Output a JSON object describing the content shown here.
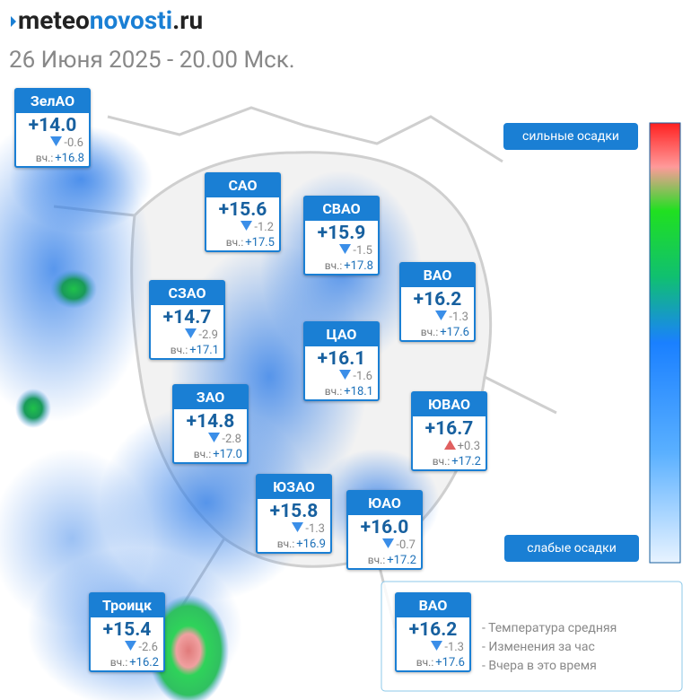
{
  "header": {
    "logo_a": "meteo",
    "logo_b": "novosti",
    "logo_c": ".ru",
    "subtitle": "26 Июня 2025 - 20.00 Мск."
  },
  "districts": [
    {
      "name": "ЗелАО",
      "temp": "+14.0",
      "trend": "down",
      "change": "-0.6",
      "yesterday_label": "вч.:",
      "yesterday": "+16.8"
    },
    {
      "name": "САО",
      "temp": "+15.6",
      "trend": "down",
      "change": "-1.2",
      "yesterday_label": "вч.:",
      "yesterday": "+17.5"
    },
    {
      "name": "СВАО",
      "temp": "+15.9",
      "trend": "down",
      "change": "-1.5",
      "yesterday_label": "вч.:",
      "yesterday": "+17.8"
    },
    {
      "name": "ВАО",
      "temp": "+16.2",
      "trend": "down",
      "change": "-1.3",
      "yesterday_label": "вч.:",
      "yesterday": "+17.6"
    },
    {
      "name": "СЗАО",
      "temp": "+14.7",
      "trend": "down",
      "change": "-2.9",
      "yesterday_label": "вч.:",
      "yesterday": "+17.1"
    },
    {
      "name": "ЦАО",
      "temp": "+16.1",
      "trend": "down",
      "change": "-1.6",
      "yesterday_label": "вч.:",
      "yesterday": "+18.1"
    },
    {
      "name": "ЗАО",
      "temp": "+14.8",
      "trend": "down",
      "change": "-2.8",
      "yesterday_label": "вч.:",
      "yesterday": "+17.0"
    },
    {
      "name": "ЮВАО",
      "temp": "+16.7",
      "trend": "up",
      "change": "+0.3",
      "yesterday_label": "вч.:",
      "yesterday": "+17.2"
    },
    {
      "name": "ЮЗАО",
      "temp": "+15.8",
      "trend": "down",
      "change": "-1.3",
      "yesterday_label": "вч.:",
      "yesterday": "+16.9"
    },
    {
      "name": "ЮАО",
      "temp": "+16.0",
      "trend": "down",
      "change": "-0.7",
      "yesterday_label": "вч.:",
      "yesterday": "+17.2"
    },
    {
      "name": "Троицк",
      "temp": "+15.4",
      "trend": "down",
      "change": "-2.6",
      "yesterday_label": "вч.:",
      "yesterday": "+16.2"
    }
  ],
  "scale": {
    "top": "сильные осадки",
    "bottom": "слабые осадки"
  },
  "legend": {
    "card": {
      "name": "ВАО",
      "temp": "+16.2",
      "trend": "down",
      "change": "-1.3",
      "yesterday_label": "вч.:",
      "yesterday": "+17.6"
    },
    "lines": [
      "- Температура средняя",
      "- Изменения за час",
      "- Вчера в это время"
    ]
  }
}
